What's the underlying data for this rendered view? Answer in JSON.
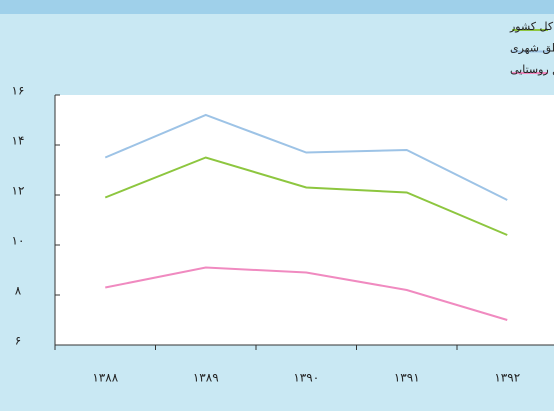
{
  "chart_data": {
    "type": "line",
    "categories": [
      "۱۳۸۸",
      "۱۳۸۹",
      "۱۳۹۰",
      "۱۳۹۱",
      "۱۳۹۲"
    ],
    "series": [
      {
        "name": "کل کشور",
        "color": "#8dc63f",
        "values": [
          11.9,
          13.5,
          12.3,
          12.1,
          10.4
        ]
      },
      {
        "name": "مناطق شهری",
        "color": "#9dc3e6",
        "values": [
          13.5,
          15.2,
          13.7,
          13.8,
          11.8
        ]
      },
      {
        "name": "مناطق روستایی",
        "color": "#f08ac0",
        "values": [
          8.3,
          9.1,
          8.9,
          8.2,
          7.0
        ]
      }
    ],
    "ylim": [
      6,
      16
    ],
    "yticks": [
      {
        "value": 6,
        "label": "۶"
      },
      {
        "value": 8,
        "label": "۸"
      },
      {
        "value": 10,
        "label": "۱۰"
      },
      {
        "value": 12,
        "label": "۱۲"
      },
      {
        "value": 14,
        "label": "۱۴"
      },
      {
        "value": 16,
        "label": "۱۶"
      }
    ],
    "legend": "top-right"
  }
}
